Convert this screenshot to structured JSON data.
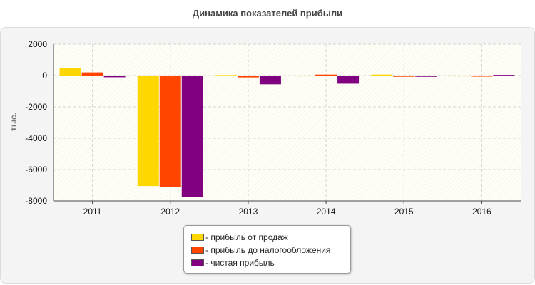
{
  "chart_data": {
    "type": "bar",
    "title": "Динамика показателей прибыли",
    "ylabel": "тыс.",
    "xlabel": "",
    "categories": [
      "2011",
      "2012",
      "2013",
      "2014",
      "2015",
      "2016"
    ],
    "series": [
      {
        "name": "- прибыль от продаж",
        "color": "#ffd700",
        "values": [
          480,
          -7050,
          30,
          -50,
          60,
          -50
        ]
      },
      {
        "name": "- прибыль до налогообложения",
        "color": "#ff4500",
        "values": [
          200,
          -7100,
          -120,
          60,
          -80,
          -70
        ]
      },
      {
        "name": "- чистая прибыль",
        "color": "#800080",
        "values": [
          -110,
          -7750,
          -560,
          -520,
          -80,
          40
        ]
      }
    ],
    "yticks": [
      2000,
      0,
      -2000,
      -4000,
      -6000,
      -8000
    ],
    "ylim": [
      -8000,
      2000
    ],
    "grid": true,
    "legend_position": "bottom-center"
  }
}
